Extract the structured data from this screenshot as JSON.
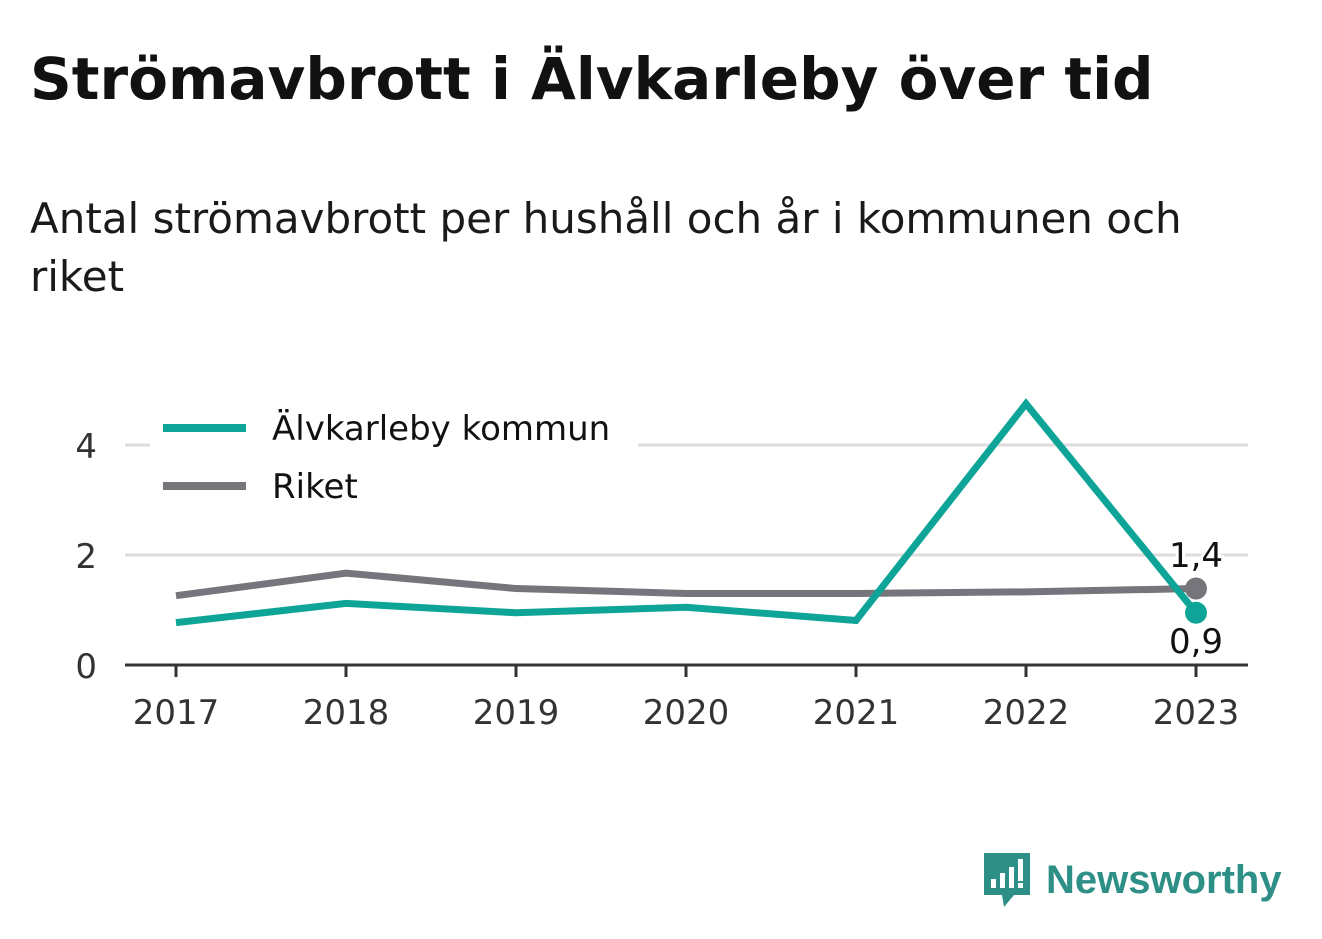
{
  "title": "Strömavbrott i Älvkarleby över tid",
  "subtitle": "Antal strömavbrott per hushåll och år i kommunen och riket",
  "brand": "Newsworthy",
  "chart_data": {
    "type": "line",
    "x": [
      "2017",
      "2018",
      "2019",
      "2020",
      "2021",
      "2022",
      "2023"
    ],
    "series": [
      {
        "name": "Älvkarleby kommun",
        "color": "#0ea598",
        "values": [
          0.77,
          1.12,
          0.95,
          1.05,
          0.81,
          4.75,
          0.95
        ],
        "end_label": "0,9"
      },
      {
        "name": "Riket",
        "color": "#75757b",
        "values": [
          1.26,
          1.67,
          1.39,
          1.3,
          1.3,
          1.33,
          1.39
        ],
        "end_label": "1,4"
      }
    ],
    "ylim": [
      0,
      4.8
    ],
    "yticks": [
      "0",
      "2",
      "4"
    ],
    "ytick_values": [
      0,
      2,
      4
    ],
    "grid": true,
    "legend": "top-left"
  }
}
